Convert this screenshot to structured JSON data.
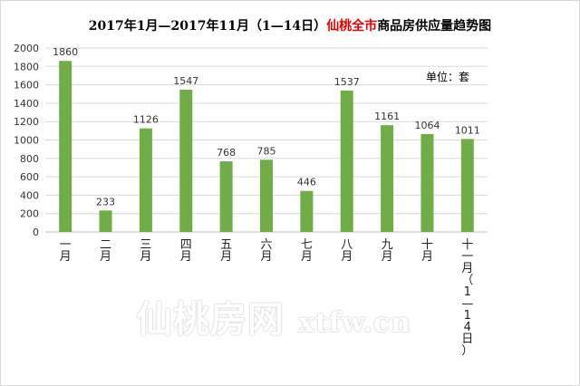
{
  "title": {
    "prefix": "2017年1月—2017年11月（1—14日）",
    "highlight": "仙桃全市",
    "suffix": "商品房供应量趋势图"
  },
  "unit_label": "单位：套",
  "watermark": {
    "name": "仙桃房网",
    "domain": "xtfw.cn"
  },
  "colors": {
    "bar": "#70ad47",
    "grid": "#d9d9d9",
    "highlight": "#e30000"
  },
  "chart_data": {
    "type": "bar",
    "title": "2017年1月—2017年11月（1—14日）仙桃全市商品房供应量趋势图",
    "categories": [
      "一月",
      "二月",
      "三月",
      "四月",
      "五月",
      "六月",
      "七月",
      "八月",
      "九月",
      "十月",
      "十一月（1—14日）"
    ],
    "values": [
      1860,
      233,
      1126,
      1547,
      768,
      785,
      446,
      1537,
      1161,
      1064,
      1011
    ],
    "ylim": [
      0,
      2000
    ],
    "yticks": [
      0,
      200,
      400,
      600,
      800,
      1000,
      1200,
      1400,
      1600,
      1800,
      2000
    ],
    "ylabel": "",
    "xlabel": "",
    "grid": true,
    "data_labels": true
  }
}
